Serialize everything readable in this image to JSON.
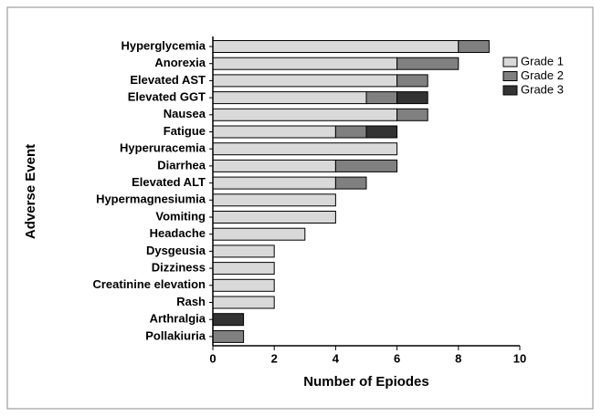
{
  "chart_data": {
    "type": "stacked-bar-horizontal",
    "x_label": "Number of Epiodes",
    "y_label": "Adverse Event",
    "categories": [
      "Hyperglycemia",
      "Anorexia",
      "Elevated AST",
      "Elevated GGT",
      "Nausea",
      "Fatigue",
      "Hyperuracemia",
      "Diarrhea",
      "Elevated ALT",
      "Hypermagnesiumia",
      "Vomiting",
      "Headache",
      "Dysgeusia",
      "Dizziness",
      "Creatinine elevation",
      "Rash",
      "Arthralgia",
      "Pollakiuria"
    ],
    "series": [
      {
        "name": "Grade 1",
        "color": "#d9d9d9",
        "values": [
          8,
          6,
          6,
          5,
          6,
          4,
          6,
          4,
          4,
          4,
          4,
          3,
          2,
          2,
          2,
          2,
          0,
          0
        ]
      },
      {
        "name": "Grade 2",
        "color": "#808080",
        "values": [
          1,
          2,
          1,
          1,
          1,
          1,
          0,
          2,
          1,
          0,
          0,
          0,
          0,
          0,
          0,
          0,
          0,
          1
        ]
      },
      {
        "name": "Grade 3",
        "color": "#333333",
        "values": [
          0,
          0,
          0,
          1,
          0,
          1,
          0,
          0,
          0,
          0,
          0,
          0,
          0,
          0,
          0,
          0,
          1,
          0
        ]
      }
    ],
    "xlim": [
      0,
      10
    ],
    "xticks": [
      0,
      2,
      4,
      6,
      8,
      10
    ],
    "legend": "top-right"
  }
}
